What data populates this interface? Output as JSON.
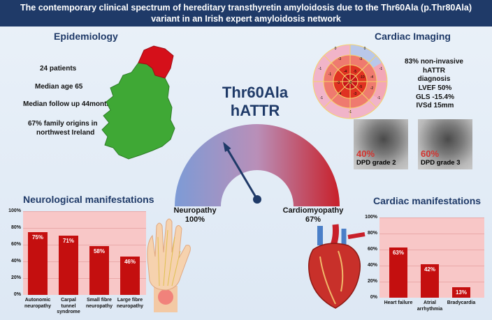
{
  "header": {
    "title_line1": "The contemporary clinical spectrum of hereditary transthyretin amyloidosis due to the Thr60Ala (p.Thr80Ala)",
    "title_line2": "variant in an Irish expert amyloidosis network"
  },
  "epidemiology": {
    "title": "Epidemiology",
    "lines": [
      "24 patients",
      "Median age 65",
      "Median follow up 44months",
      "67% family origins in",
      "northwest Ireland"
    ]
  },
  "center": {
    "line1": "Thr60Ala",
    "line2": "hATTR"
  },
  "gauge": {
    "neuropathy_label": "Neuropathy",
    "neuropathy_value": "100%",
    "cardio_label": "Cardiomyopathy",
    "cardio_value": "67%",
    "needle_fraction": 0.33
  },
  "cardiac_imaging": {
    "title": "Cardiac Imaging",
    "diag_line1": "83% non-invasive hATTR",
    "diag_line2": "diagnosis",
    "lvef": "LVEF 50%",
    "gls": "GLS -15.4%",
    "ivsd": "IVSd 15mm",
    "scan1_pct": "40%",
    "scan1_grade": "DPD grade 2",
    "scan2_pct": "60%",
    "scan2_grade": "DPD grade 3",
    "bullseye_values": [
      "0",
      "0",
      "-1",
      "-1",
      "-3",
      "-3",
      "-1",
      "-4",
      "-5",
      "-10",
      "-4",
      "-3",
      "-8",
      "-5",
      "-4",
      "-3",
      "-2",
      "-1",
      "-1",
      "-1"
    ]
  },
  "colors": {
    "navy": "#1f3a68",
    "bar_red": "#c40f0f",
    "chart_pink": "#f8c7c7",
    "ireland_green": "#3fa835",
    "ni_red": "#d5101a"
  },
  "chart_data": [
    {
      "type": "bar",
      "title": "Neurological manifestations",
      "categories": [
        "Autonomic neuropathy",
        "Carpal tunnel syndrome",
        "Small fibre neuropathy",
        "Large fibre neuropathy"
      ],
      "category_lines": [
        [
          "Autonomic",
          "neuropathy"
        ],
        [
          "Carpal",
          "tunnel",
          "syndrome"
        ],
        [
          "Small fibre",
          "neuropathy"
        ],
        [
          "Large fibre",
          "neuropathy"
        ]
      ],
      "values": [
        75,
        71,
        58,
        46
      ],
      "value_labels": [
        "75%",
        "71%",
        "58%",
        "46%"
      ],
      "yticks": [
        "0%",
        "20%",
        "40%",
        "60%",
        "80%",
        "100%"
      ],
      "ylim": [
        0,
        100
      ]
    },
    {
      "type": "bar",
      "title": "Cardiac manifestations",
      "categories": [
        "Heart failure",
        "Atrial arrhythmia",
        "Bradycardia"
      ],
      "category_lines": [
        [
          "Heart failure"
        ],
        [
          "Atrial",
          "arrhythmia"
        ],
        [
          "Bradycardia"
        ]
      ],
      "values": [
        63,
        42,
        13
      ],
      "value_labels": [
        "63%",
        "42%",
        "13%"
      ],
      "yticks": [
        "0%",
        "20%",
        "40%",
        "60%",
        "80%",
        "100%"
      ],
      "ylim": [
        0,
        100
      ]
    }
  ]
}
